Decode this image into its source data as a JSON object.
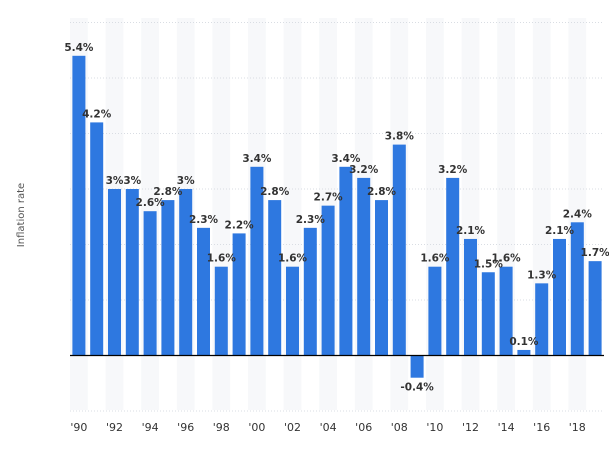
{
  "chart_data": {
    "type": "bar",
    "ylabel": "Inflation rate",
    "xlabel": "",
    "title": "",
    "ylim": [
      -1.0,
      6.0
    ],
    "grid": "horizontal",
    "bar_color": "#2e78e0",
    "years": [
      1990,
      1991,
      1992,
      1993,
      1994,
      1995,
      1996,
      1997,
      1998,
      1999,
      2000,
      2001,
      2002,
      2003,
      2004,
      2005,
      2006,
      2007,
      2008,
      2009,
      2010,
      2011,
      2012,
      2013,
      2014,
      2015,
      2016,
      2017,
      2018,
      2019
    ],
    "values": [
      5.4,
      4.2,
      3.0,
      3.0,
      2.6,
      2.8,
      3.0,
      2.3,
      1.6,
      2.2,
      3.4,
      2.8,
      1.6,
      2.3,
      2.7,
      3.4,
      3.2,
      2.8,
      3.8,
      -0.4,
      1.6,
      3.2,
      2.1,
      1.5,
      1.6,
      0.1,
      1.3,
      2.1,
      2.4,
      1.7
    ],
    "value_labels": [
      "5.4%",
      "4.2%",
      "3%",
      "3%",
      "2.6%",
      "2.8%",
      "3%",
      "2.3%",
      "1.6%",
      "2.2%",
      "3.4%",
      "2.8%",
      "1.6%",
      "2.3%",
      "2.7%",
      "3.4%",
      "3.2%",
      "2.8%",
      "3.8%",
      "-0.4%",
      "1.6%",
      "3.2%",
      "2.1%",
      "1.5%",
      "1.6%",
      "0.1%",
      "1.3%",
      "2.1%",
      "2.4%",
      "1.7%"
    ],
    "tick_labels": [
      "'90",
      "'92",
      "'94",
      "'96",
      "'98",
      "'00",
      "'02",
      "'04",
      "'06",
      "'08",
      "'10",
      "'12",
      "'14",
      "'16",
      "'18"
    ]
  }
}
